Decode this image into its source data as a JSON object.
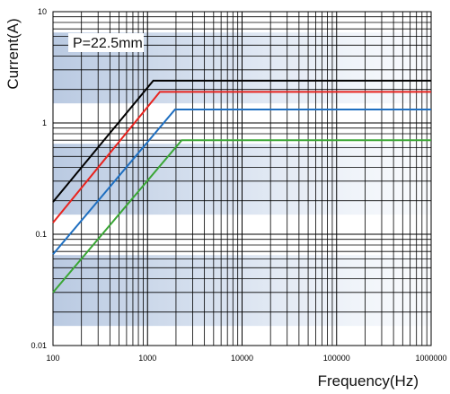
{
  "chart_data": {
    "type": "line",
    "title": "",
    "xlabel": "Frequency(Hz)",
    "ylabel": "Current(A)",
    "x_scale": "log",
    "y_scale": "log",
    "xlim": [
      100,
      1000000
    ],
    "ylim": [
      0.01,
      10
    ],
    "x_ticks": [
      100,
      1000,
      10000,
      100000,
      1000000
    ],
    "x_tick_labels": [
      "100",
      "1000",
      "10000",
      "100000",
      "1000000"
    ],
    "y_ticks": [
      0.01,
      0.1,
      1,
      10
    ],
    "y_tick_labels": [
      "0.01",
      "0.1",
      "1",
      "10"
    ],
    "grid": true,
    "annotation": "P=22.5mm",
    "series": [
      {
        "color": "#000000",
        "x": [
          100,
          1150,
          1000000
        ],
        "y": [
          0.195,
          2.4,
          2.4
        ]
      },
      {
        "color": "#e8231e",
        "x": [
          100,
          1350,
          1000000
        ],
        "y": [
          0.127,
          1.9,
          1.9
        ]
      },
      {
        "color": "#1f6fc0",
        "x": [
          100,
          1950,
          1000000
        ],
        "y": [
          0.066,
          1.32,
          1.32
        ]
      },
      {
        "color": "#3aa635",
        "x": [
          100,
          2300,
          1000000
        ],
        "y": [
          0.03,
          0.7,
          0.7
        ]
      }
    ]
  }
}
